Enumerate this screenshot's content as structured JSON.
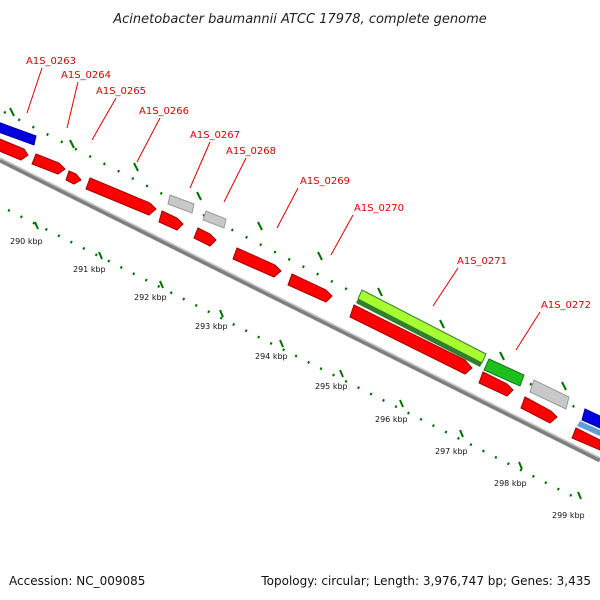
{
  "title": "Acinetobacter baumannii ATCC 17978, complete genome",
  "footer": {
    "accession": "Accession: NC_009085",
    "topology": "Topology: circular; Length: 3,976,747 bp; Genes: 3,435"
  },
  "colors": {
    "cds": "#ff0000",
    "cds_dark": "#c00000",
    "unknown": "#c8c8c8",
    "blue": "#0000e0",
    "green": "#1ebe1e",
    "lime": "#a8ff30",
    "dark_green": "#2f7f2f",
    "label_red": "#dd0000",
    "tick_green": "#007000",
    "backbone": "#8c8c8c"
  },
  "gene_labels": [
    {
      "name": "A1S_0263"
    },
    {
      "name": "A1S_0264"
    },
    {
      "name": "A1S_0265"
    },
    {
      "name": "A1S_0266"
    },
    {
      "name": "A1S_0267"
    },
    {
      "name": "A1S_0268"
    },
    {
      "name": "A1S_0269"
    },
    {
      "name": "A1S_0270"
    },
    {
      "name": "A1S_0271"
    },
    {
      "name": "A1S_0272"
    }
  ],
  "ticks": [
    {
      "label": "290 kbp"
    },
    {
      "label": "291 kbp"
    },
    {
      "label": "292 kbp"
    },
    {
      "label": "293 kbp"
    },
    {
      "label": "294 kbp"
    },
    {
      "label": "295 kbp"
    },
    {
      "label": "296 kbp"
    },
    {
      "label": "297 kbp"
    },
    {
      "label": "298 kbp"
    },
    {
      "label": "299 kbp"
    }
  ]
}
